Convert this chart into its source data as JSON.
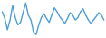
{
  "values": [
    72,
    58,
    35,
    55,
    85,
    60,
    45,
    50,
    70,
    90,
    65,
    55,
    30,
    25,
    45,
    60,
    68,
    58,
    50,
    65,
    80,
    72,
    62,
    55,
    48,
    58,
    70,
    65,
    55,
    60,
    72,
    78,
    65,
    55,
    48,
    55,
    62,
    70,
    65,
    55
  ],
  "line_color": "#4d9ed4",
  "background_color": "#ffffff",
  "linewidth": 1.0
}
